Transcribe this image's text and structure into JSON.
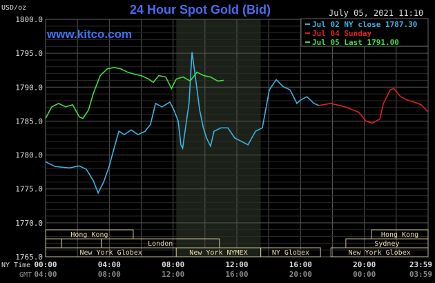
{
  "chart_data": {
    "type": "line",
    "title": "24 Hour Spot Gold (Bid)",
    "watermark": "www.kitco.com",
    "timestamp": "July 05, 2021 11:10",
    "ylabel": "USD/oz",
    "ylim": [
      1765,
      1800
    ],
    "yticks": [
      "1800.0",
      "1795.0",
      "1790.0",
      "1785.0",
      "1780.0",
      "1775.0",
      "1770.0",
      "1765.0"
    ],
    "xlim_hours": [
      0,
      24
    ],
    "xaxis_rows": [
      {
        "label": "NY Time",
        "ticks": [
          "00:00",
          "04:00",
          "08:00",
          "12:00",
          "16:00",
          "20:00",
          "23:59"
        ],
        "color": "#dddddd"
      },
      {
        "label": "GMT",
        "ticks": [
          "04:00",
          "08:00",
          "12:00",
          "16:00",
          "20:00",
          "00:00",
          "03:59"
        ],
        "color": "#888888"
      }
    ],
    "grid": true,
    "legend_position": "top-right",
    "series": [
      {
        "name": "Jul 02 NY close 1787.30",
        "color": "#3ab4e6",
        "x": [
          0,
          0.6,
          1.5,
          2.1,
          2.56,
          3.0,
          3.3,
          3.64,
          4.0,
          4.3,
          4.6,
          4.94,
          5.37,
          5.8,
          6.24,
          6.58,
          6.9,
          7.3,
          7.8,
          8.06,
          8.32,
          8.49,
          8.6,
          8.84,
          9.0,
          9.19,
          9.45,
          9.67,
          9.9,
          10.1,
          10.35,
          10.57,
          11.0,
          11.44,
          11.87,
          12.3,
          12.7,
          13.17,
          13.6,
          14.04,
          14.47,
          14.9,
          15.34,
          15.77,
          16.0,
          16.4,
          16.84,
          17.15
        ],
        "y": [
          1779.0,
          1778.3,
          1778.1,
          1778.4,
          1777.9,
          1776.2,
          1774.4,
          1776.0,
          1778.4,
          1781.0,
          1783.5,
          1783.0,
          1783.7,
          1783.0,
          1783.5,
          1784.5,
          1787.6,
          1787.1,
          1787.8,
          1786.6,
          1785.0,
          1781.5,
          1781.0,
          1785.0,
          1787.6,
          1795.2,
          1790.6,
          1786.6,
          1784.0,
          1782.5,
          1781.3,
          1783.5,
          1784.0,
          1784.0,
          1782.5,
          1782.0,
          1781.5,
          1783.5,
          1784.0,
          1789.6,
          1791.1,
          1790.1,
          1789.6,
          1787.6,
          1788.1,
          1788.6,
          1787.6,
          1787.3
        ]
      },
      {
        "name": "Jul 04 Sunday",
        "color": "#e02020",
        "x": [
          17.15,
          17.9,
          18.8,
          19.65,
          20.1,
          20.5,
          20.97,
          21.2,
          21.62,
          21.85,
          22.27,
          22.7,
          23.13,
          23.57,
          23.98
        ],
        "y": [
          1787.3,
          1787.6,
          1787.1,
          1786.3,
          1785.0,
          1784.7,
          1785.3,
          1787.6,
          1789.6,
          1789.8,
          1788.6,
          1788.1,
          1787.8,
          1787.4,
          1786.4
        ]
      },
      {
        "name": "Jul 05 Last 1791.00",
        "color": "#3ee03e",
        "x": [
          0,
          0.39,
          0.82,
          1.26,
          1.7,
          2.12,
          2.34,
          2.69,
          3.0,
          3.43,
          3.87,
          4.3,
          4.72,
          5.16,
          5.6,
          6.0,
          6.46,
          6.76,
          7.1,
          7.54,
          7.9,
          8.2,
          8.63,
          9.07,
          9.5,
          9.93,
          10.35,
          10.8,
          11.17
        ],
        "y": [
          1785.4,
          1787.1,
          1787.6,
          1787.1,
          1787.4,
          1785.6,
          1785.4,
          1786.6,
          1789.1,
          1791.7,
          1792.7,
          1792.9,
          1792.7,
          1792.2,
          1791.9,
          1791.7,
          1791.2,
          1790.7,
          1791.7,
          1791.5,
          1789.8,
          1791.2,
          1791.5,
          1790.9,
          1792.2,
          1791.7,
          1791.5,
          1790.9,
          1791.0
        ]
      }
    ],
    "highlight_hours": [
      8.2,
      13.5
    ],
    "sessions": [
      {
        "row": 0,
        "start": 0,
        "end": 5.5,
        "label": "Hong Kong"
      },
      {
        "row": 0,
        "start": 20.45,
        "end": 24,
        "label": "Hong Kong"
      },
      {
        "row": 1,
        "start": 0,
        "end": 1,
        "label": ""
      },
      {
        "row": 1,
        "start": 1,
        "end": 3.5,
        "label": ""
      },
      {
        "row": 1,
        "start": 3.5,
        "end": 10.9,
        "label": "London"
      },
      {
        "row": 1,
        "start": 18.84,
        "end": 24,
        "label": "Sydney"
      },
      {
        "row": 2,
        "start": 0,
        "end": 8.2,
        "label": "New York Globex"
      },
      {
        "row": 2,
        "start": 8.2,
        "end": 13.5,
        "label": "New York NYMEX"
      },
      {
        "row": 2,
        "start": 13.5,
        "end": 17.25,
        "label": "NY Globex"
      },
      {
        "row": 2,
        "start": 17.9,
        "end": 24,
        "label": "New York Globex"
      }
    ]
  }
}
